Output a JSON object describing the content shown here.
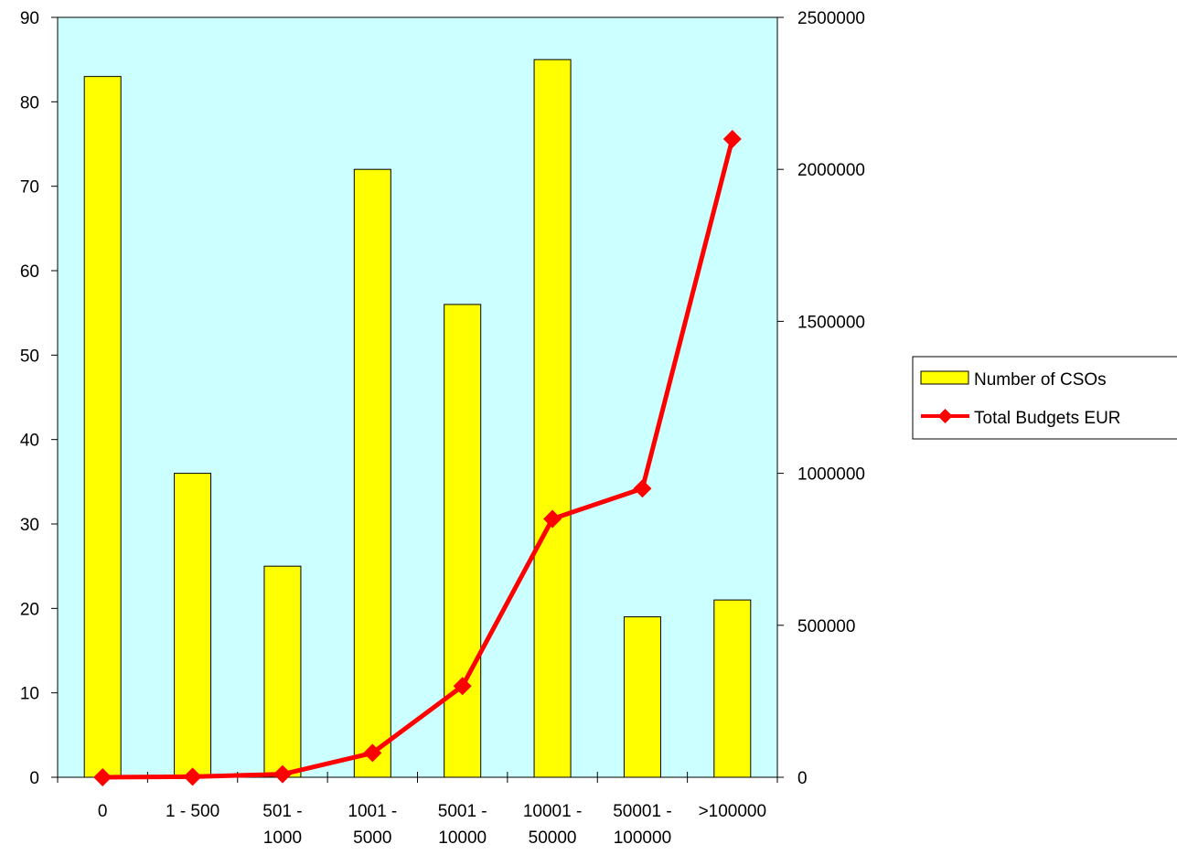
{
  "chart_data": {
    "type": "bar",
    "categories": [
      [
        "0"
      ],
      [
        "1 - 500"
      ],
      [
        "501 -",
        "1000"
      ],
      [
        "1001 -",
        "5000"
      ],
      [
        "5001 -",
        "10000"
      ],
      [
        "10001 -",
        "50000"
      ],
      [
        "50001 -",
        "100000"
      ],
      [
        ">100000"
      ]
    ],
    "series": [
      {
        "name": "Number of CSOs",
        "kind": "bar",
        "axis": "left",
        "color": "#FFFF00",
        "values": [
          83,
          36,
          25,
          72,
          56,
          85,
          19,
          21
        ]
      },
      {
        "name": "Total Budgets EUR",
        "kind": "line",
        "axis": "right",
        "color": "#FF0000",
        "values": [
          0,
          2000,
          10000,
          80000,
          300000,
          850000,
          950000,
          2100000
        ]
      }
    ],
    "y_left": {
      "min": 0,
      "max": 90,
      "step": 10
    },
    "y_right": {
      "min": 0,
      "max": 2500000,
      "step": 500000
    },
    "plot_background": "#CCFFFF",
    "grid": false,
    "legend_position": "right"
  }
}
